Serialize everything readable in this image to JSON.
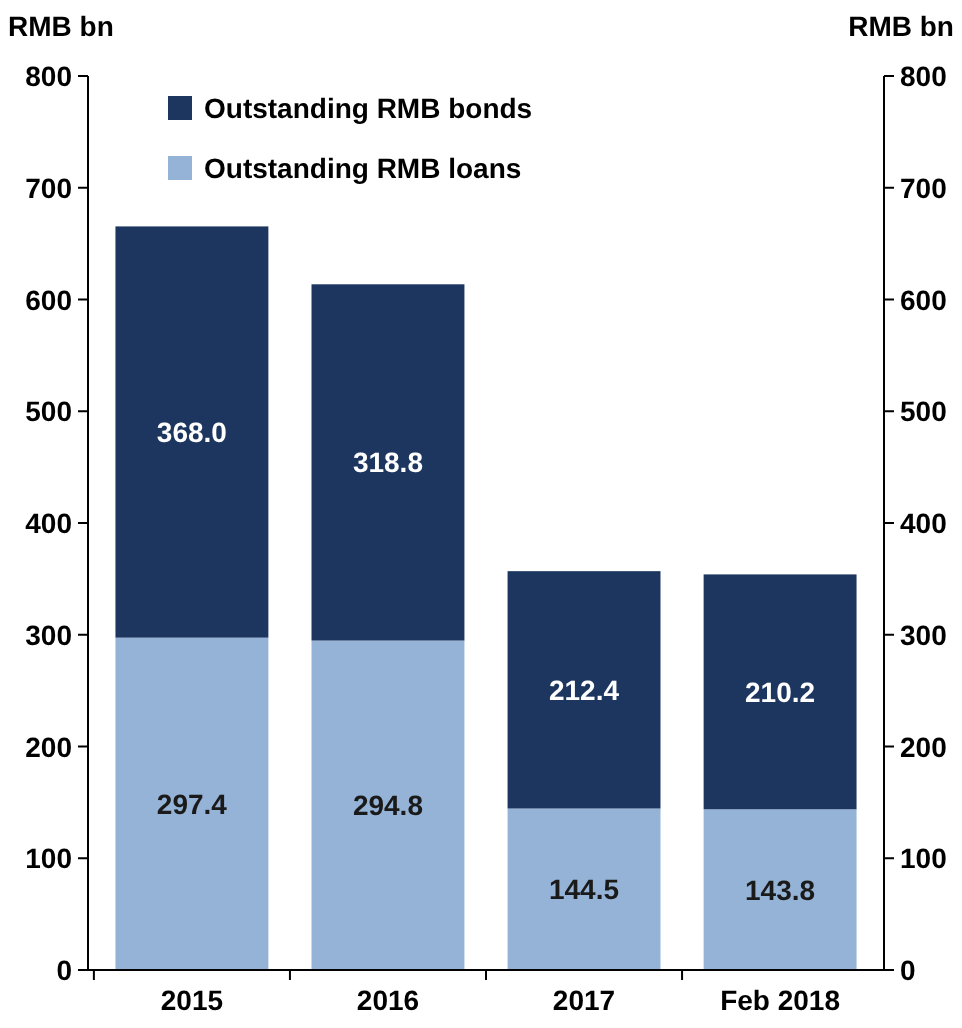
{
  "chart_data": {
    "type": "bar",
    "stacked": true,
    "categories": [
      "2015",
      "2016",
      "2017",
      "Feb 2018"
    ],
    "series": [
      {
        "name": "Outstanding RMB loans",
        "color": "#95b3d7",
        "values": [
          297.4,
          294.8,
          144.5,
          143.8
        ],
        "value_labels": [
          "297.4",
          "294.8",
          "144.5",
          "143.8"
        ]
      },
      {
        "name": "Outstanding RMB bonds",
        "color": "#1c3660",
        "values": [
          368.0,
          318.8,
          212.4,
          210.2
        ],
        "value_labels": [
          "368.0",
          "318.8",
          "212.4",
          "210.2"
        ]
      }
    ],
    "ylabel": "RMB bn",
    "y2label": "RMB bn",
    "ylim": [
      0,
      800
    ],
    "yticks": [
      0,
      100,
      200,
      300,
      400,
      500,
      600,
      700,
      800
    ],
    "y2lim": [
      0,
      800
    ],
    "y2ticks": [
      0,
      100,
      200,
      300,
      400,
      500,
      600,
      700,
      800
    ],
    "legend": "top left",
    "grid": false
  }
}
